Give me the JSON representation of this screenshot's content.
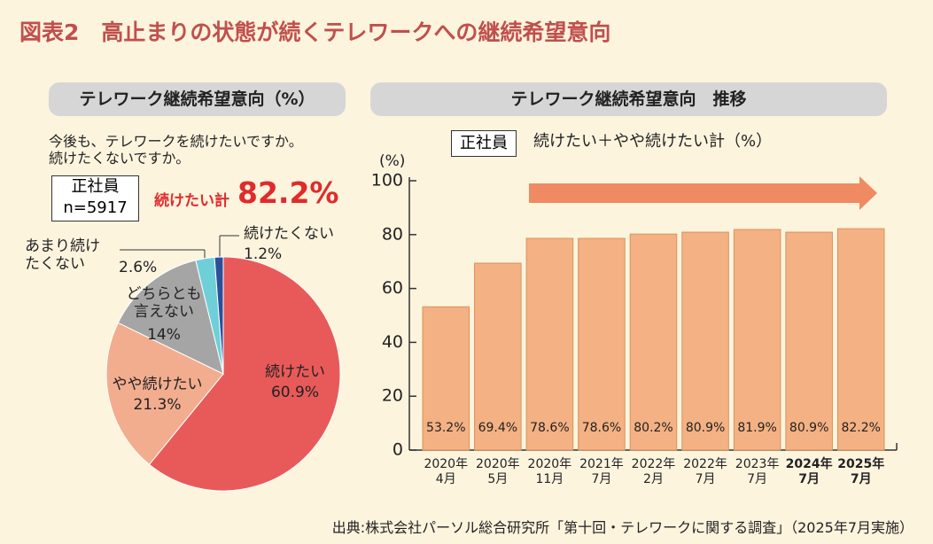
{
  "title": "図表2　高止まりの状態が続くテレワークへの継続希望意向",
  "source": "出典:株式会社パーソル総合研究所「第十回・テレワークに関する調査」（2025年7月実施）",
  "chart_data": [
    {
      "type": "pie",
      "title": "テレワーク継続希望意向（%）",
      "question": "今後も、テレワークを続けたいですか。\n続けたくないですか。",
      "group": "正社員",
      "n": "n=5917",
      "annotation_label": "続けたい計",
      "annotation_value": "82.2%",
      "categories": [
        "続けたい",
        "やや続けたい",
        "どちらとも\n言えない",
        "あまり続け\nたくない",
        "続けたくない"
      ],
      "values": [
        60.9,
        21.3,
        14,
        2.6,
        1.2
      ],
      "value_labels": [
        "60.9%",
        "21.3%",
        "14%",
        "2.6%",
        "1.2%"
      ],
      "colors": [
        "#e85a5a",
        "#f2ad8f",
        "#a5a5a5",
        "#6fcfd8",
        "#2c4f9c"
      ]
    },
    {
      "type": "bar",
      "title": "テレワーク継続希望意向　推移",
      "legend_label": "正社員",
      "subtitle": "続けたい＋やや続けたい計（%）",
      "ylabel": "(%)",
      "categories": [
        "2020年\n4月",
        "2020年\n5月",
        "2020年\n11月",
        "2021年\n7月",
        "2022年\n2月",
        "2022年\n7月",
        "2023年\n7月",
        "2024年\n7月",
        "2025年\n7月"
      ],
      "values": [
        53.2,
        69.4,
        78.6,
        78.6,
        80.2,
        80.9,
        81.9,
        80.9,
        82.2
      ],
      "value_labels": [
        "53.2%",
        "69.4%",
        "78.6%",
        "78.6%",
        "80.2%",
        "80.9%",
        "81.9%",
        "80.9%",
        "82.2%"
      ],
      "color": "#f4b183",
      "ylim": [
        0,
        100
      ],
      "yticks": [
        0,
        20,
        40,
        60,
        80,
        100
      ]
    }
  ]
}
